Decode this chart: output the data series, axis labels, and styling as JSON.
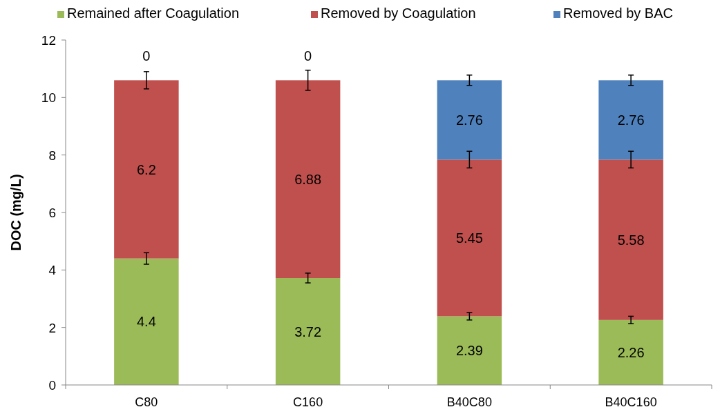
{
  "chart_data": {
    "type": "bar",
    "stacked": true,
    "ylabel": "DOC (mg/L)",
    "categories": [
      "C80",
      "C160",
      "B40C80",
      "B40C160"
    ],
    "series": [
      {
        "name": "Remained after Coagulation",
        "color": "#9bbb59",
        "values": [
          4.4,
          3.72,
          2.39,
          2.26
        ],
        "errors": [
          0.2,
          0.17,
          0.13,
          0.13
        ]
      },
      {
        "name": "Removed by Coagulation",
        "color": "#c0504d",
        "values": [
          6.2,
          6.88,
          5.45,
          5.58
        ],
        "errors": [
          0.3,
          0.35,
          0.29,
          0.29
        ]
      },
      {
        "name": "Removed by BAC",
        "color": "#4f81bd",
        "values": [
          0,
          0,
          2.76,
          2.76
        ],
        "errors": [
          null,
          null,
          0.18,
          0.18
        ]
      }
    ],
    "ylim": [
      0,
      12
    ],
    "yticks": [
      0,
      2,
      4,
      6,
      8,
      10,
      12
    ],
    "data_labels": true,
    "legend": "top",
    "grid": false
  }
}
